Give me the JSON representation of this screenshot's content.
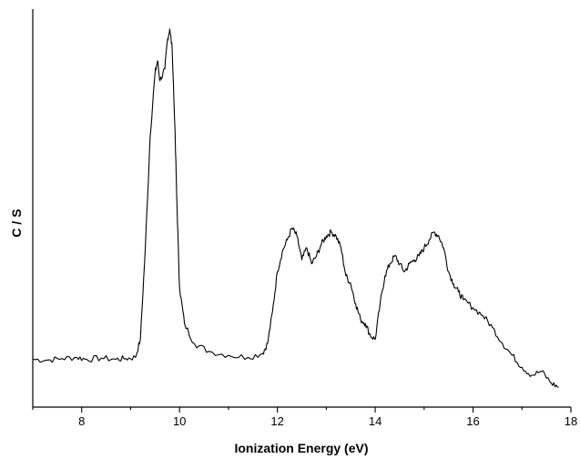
{
  "chart_data": {
    "type": "line",
    "title": "",
    "xlabel": "Ionization Energy (eV)",
    "ylabel": "C / S",
    "xlim": [
      7,
      18
    ],
    "ylim": [
      0,
      100
    ],
    "xticks": [
      8,
      10,
      12,
      14,
      16,
      18
    ],
    "yticks_shown": false,
    "grid": false,
    "legend": "none",
    "line_color": "#000000",
    "series": [
      {
        "x": [
          7.0,
          7.3,
          7.6,
          7.9,
          8.1,
          8.4,
          8.7,
          8.9,
          9.1,
          9.2,
          9.3,
          9.4,
          9.5,
          9.55,
          9.6,
          9.7,
          9.75,
          9.8,
          9.85,
          9.9,
          9.95,
          10.0,
          10.1,
          10.3,
          10.6,
          11.0,
          11.4,
          11.7,
          11.8,
          11.9,
          12.0,
          12.1,
          12.2,
          12.3,
          12.4,
          12.5,
          12.6,
          12.7,
          12.8,
          12.9,
          13.0,
          13.1,
          13.2,
          13.3,
          13.4,
          13.5,
          13.6,
          13.7,
          13.8,
          13.9,
          14.0,
          14.1,
          14.2,
          14.3,
          14.4,
          14.5,
          14.6,
          14.7,
          14.8,
          14.9,
          15.0,
          15.1,
          15.2,
          15.3,
          15.4,
          15.5,
          15.6,
          15.7,
          15.8,
          16.0,
          16.2,
          16.4,
          16.6,
          16.8,
          17.0,
          17.2,
          17.4,
          17.6,
          17.75
        ],
        "y": [
          12.0,
          11.8,
          12.2,
          12.5,
          12.0,
          12.3,
          12.0,
          12.2,
          12.5,
          17.0,
          40.0,
          68.0,
          84.0,
          87.0,
          82.0,
          85.0,
          92.0,
          95.0,
          90.0,
          72.0,
          50.0,
          30.0,
          21.0,
          16.0,
          14.0,
          13.0,
          12.5,
          13.5,
          16.0,
          24.0,
          34.0,
          39.0,
          42.0,
          45.0,
          43.0,
          37.0,
          40.0,
          36.0,
          38.0,
          41.0,
          43.0,
          44.0,
          43.0,
          40.0,
          33.0,
          31.0,
          26.0,
          22.0,
          21.0,
          18.0,
          17.0,
          26.0,
          33.0,
          36.0,
          38.0,
          36.0,
          34.0,
          36.0,
          37.0,
          38.0,
          40.0,
          42.0,
          44.0,
          43.0,
          40.0,
          34.0,
          31.0,
          29.0,
          27.0,
          25.0,
          23.0,
          20.0,
          16.0,
          13.0,
          10.0,
          8.0,
          9.0,
          6.0,
          5.0
        ]
      }
    ]
  }
}
